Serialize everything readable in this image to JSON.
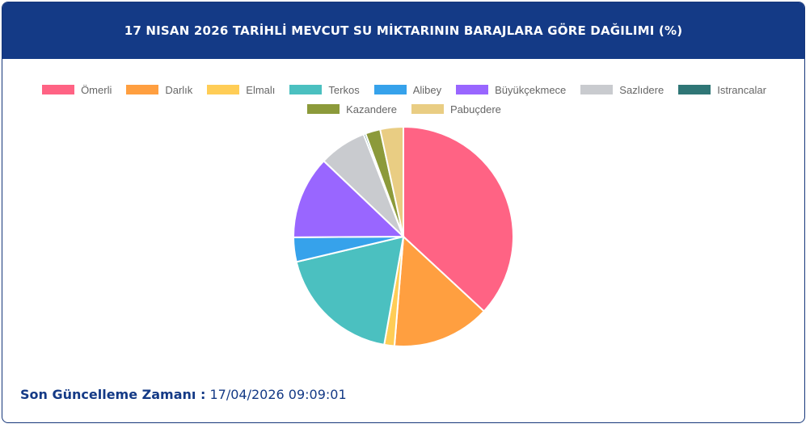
{
  "chart_data": {
    "type": "pie",
    "title": "17 NISAN 2026 TARİHLİ MEVCUT SU MİKTARININ BARAJLARA GÖRE DAĞILIMI (%)",
    "categories": [
      "Ömerli",
      "Darlık",
      "Elmalı",
      "Terkos",
      "Alibey",
      "Büyükçekmece",
      "Sazlıdere",
      "Istrancalar",
      "Kazandere",
      "Pabuçdere"
    ],
    "values": [
      36.9,
      14.4,
      1.5,
      18.5,
      3.6,
      12.2,
      7.0,
      0.3,
      2.2,
      3.4
    ],
    "colors": [
      "#ff6384",
      "#ff9f40",
      "#ffcd56",
      "#4bc0c0",
      "#36a2eb",
      "#9966ff",
      "#c9cbcf",
      "#2f7676",
      "#8c9a3a",
      "#e9cd83"
    ]
  },
  "footer": {
    "label": "Son Güncelleme Zamanı :",
    "value": "17/04/2026 09:09:01"
  }
}
